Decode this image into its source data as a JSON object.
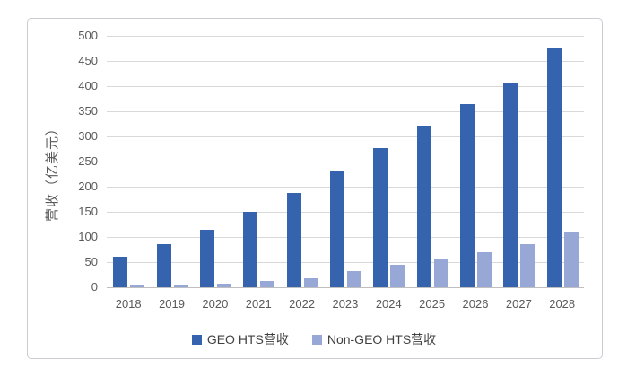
{
  "chart_data": {
    "type": "bar",
    "title": "",
    "xlabel": "",
    "ylabel": "营收（亿美元）",
    "categories": [
      "2018",
      "2019",
      "2020",
      "2021",
      "2022",
      "2023",
      "2024",
      "2025",
      "2026",
      "2027",
      "2028"
    ],
    "series": [
      {
        "name": "GEO HTS营收",
        "color": "#3563ad",
        "values": [
          61,
          85,
          115,
          150,
          188,
          232,
          277,
          321,
          365,
          405,
          475
        ]
      },
      {
        "name": "Non-GEO HTS营收",
        "color": "#97a8d6",
        "values": [
          3,
          4,
          7,
          13,
          18,
          33,
          45,
          57,
          70,
          86,
          109
        ]
      }
    ],
    "ylim": [
      0,
      500
    ],
    "yticks": [
      0,
      50,
      100,
      150,
      200,
      250,
      300,
      350,
      400,
      450,
      500
    ],
    "grid": true,
    "legend_position": "bottom"
  },
  "colors": {
    "bar_geo": "#3563ad",
    "bar_non_geo": "#97a8d6",
    "gridline": "#d9d9d9",
    "axis_line": "#bfbfbf",
    "axis_text": "#595959",
    "frame_border": "#c9cdd2",
    "background": "#ffffff"
  }
}
